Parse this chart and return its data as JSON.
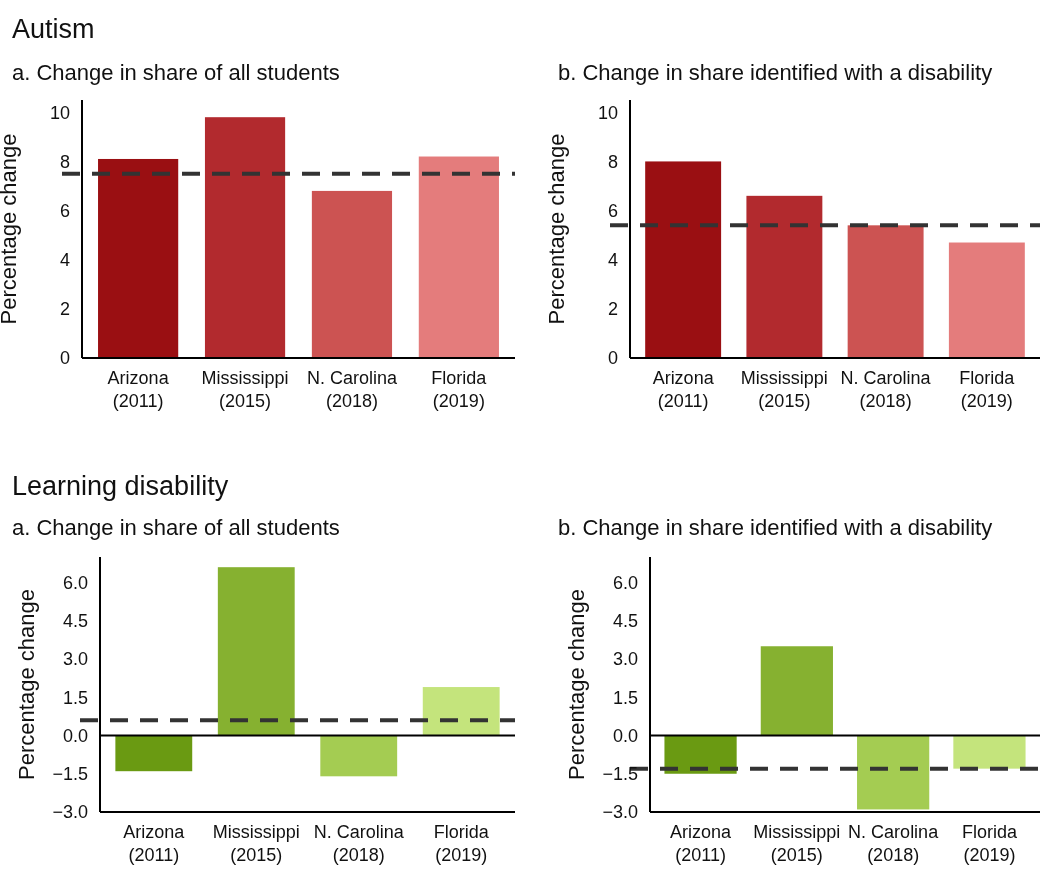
{
  "chart_data": [
    {
      "type": "bar",
      "title": "Autism",
      "subtitle": "a. Change in share of all students",
      "ylabel": "Percentage change",
      "categories": [
        "Arizona (2011)",
        "Mississippi (2015)",
        "N. Carolina (2018)",
        "Florida (2019)"
      ],
      "values": [
        8.1,
        9.8,
        6.8,
        8.2
      ],
      "colors": [
        "#9a0f12",
        "#b22a2e",
        "#cc5352",
        "#e47c7c"
      ],
      "ylim": [
        0,
        10.5
      ],
      "yticks": [
        0,
        2,
        4,
        6,
        8,
        10
      ],
      "ref_lines": [
        {
          "axis": "y",
          "value": 7.5,
          "color": "#333333",
          "line_style": "dashed"
        }
      ]
    },
    {
      "type": "bar",
      "subtitle": "b. Change in share identified with a disability",
      "ylabel": "Percentage change",
      "categories": [
        "Arizona (2011)",
        "Mississippi (2015)",
        "N. Carolina (2018)",
        "Florida (2019)"
      ],
      "values": [
        8.0,
        6.6,
        5.4,
        4.7
      ],
      "colors": [
        "#9a0f12",
        "#b22a2e",
        "#cc5352",
        "#e47c7c"
      ],
      "ylim": [
        0,
        10.5
      ],
      "yticks": [
        0,
        2,
        4,
        6,
        8,
        10
      ],
      "ref_lines": [
        {
          "axis": "y",
          "value": 5.4,
          "color": "#333333",
          "line_style": "dashed"
        }
      ]
    },
    {
      "type": "bar",
      "title": "Learning disability",
      "subtitle": "a. Change in share of all students",
      "ylabel": "Percentage change",
      "categories": [
        "Arizona (2011)",
        "Mississippi (2015)",
        "N. Carolina (2018)",
        "Florida (2019)"
      ],
      "values": [
        -1.4,
        6.6,
        -1.6,
        1.9
      ],
      "colors": [
        "#6a9a12",
        "#86b130",
        "#a4cc52",
        "#c4e47c"
      ],
      "ylim": [
        -3,
        7
      ],
      "yticks": [
        {
          "value": -3,
          "label": "−3.0"
        },
        {
          "value": -1.5,
          "label": "−1.5"
        },
        {
          "value": 0,
          "label": "0.0"
        },
        {
          "value": 1.5,
          "label": "1.5"
        },
        {
          "value": 3,
          "label": "3.0"
        },
        {
          "value": 4.5,
          "label": "4.5"
        },
        {
          "value": 6,
          "label": "6.0"
        }
      ],
      "ref_lines": [
        {
          "axis": "y",
          "value": 0.6,
          "color": "#333333",
          "line_style": "dashed"
        }
      ]
    },
    {
      "type": "bar",
      "subtitle": "b. Change in share identified with a disability",
      "ylabel": "Percentage change",
      "categories": [
        "Arizona (2011)",
        "Mississippi (2015)",
        "N. Carolina (2018)",
        "Florida (2019)"
      ],
      "values": [
        -1.5,
        3.5,
        -2.9,
        -1.3
      ],
      "colors": [
        "#6a9a12",
        "#86b130",
        "#a4cc52",
        "#c4e47c"
      ],
      "ylim": [
        -3,
        7
      ],
      "yticks": [
        {
          "value": -3,
          "label": "−3.0"
        },
        {
          "value": -1.5,
          "label": "−1.5"
        },
        {
          "value": 0,
          "label": "0.0"
        },
        {
          "value": 1.5,
          "label": "1.5"
        },
        {
          "value": 3,
          "label": "3.0"
        },
        {
          "value": 4.5,
          "label": "4.5"
        },
        {
          "value": 6,
          "label": "6.0"
        }
      ],
      "ref_lines": [
        {
          "axis": "y",
          "value": -1.3,
          "color": "#333333",
          "line_style": "dashed"
        }
      ]
    }
  ]
}
